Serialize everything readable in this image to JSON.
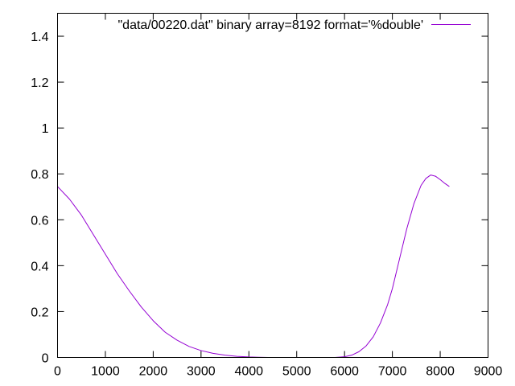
{
  "chart_data": {
    "type": "line",
    "title": "",
    "xlabel": "",
    "ylabel": "",
    "xlim": [
      0,
      9000
    ],
    "ylim": [
      0,
      1.5
    ],
    "x_ticks": [
      "0",
      "1000",
      "2000",
      "3000",
      "4000",
      "5000",
      "6000",
      "7000",
      "8000",
      "9000"
    ],
    "y_ticks": [
      "0",
      "0.2",
      "0.4",
      "0.6",
      "0.8",
      "1",
      "1.2",
      "1.4"
    ],
    "grid": false,
    "legend_position": "top-right",
    "series": [
      {
        "name": "\"data/00220.dat\" binary array=8192 format='%double'",
        "color": "#9400d3",
        "x": [
          0,
          250,
          500,
          750,
          1000,
          1250,
          1500,
          1750,
          2000,
          2250,
          2500,
          2750,
          3000,
          3250,
          3500,
          3750,
          4000,
          4200,
          4400,
          4600,
          4800,
          5000,
          5200,
          5400,
          5600,
          5800,
          6000,
          6150,
          6300,
          6450,
          6600,
          6750,
          6900,
          7000,
          7150,
          7300,
          7450,
          7600,
          7700,
          7800,
          7900,
          8000,
          8100,
          8191
        ],
        "y": [
          0.745,
          0.69,
          0.62,
          0.535,
          0.45,
          0.365,
          0.29,
          0.22,
          0.16,
          0.11,
          0.075,
          0.048,
          0.03,
          0.018,
          0.01,
          0.005,
          0.002,
          0.001,
          0.0,
          0.0,
          0.0,
          0.0,
          0.0,
          0.0,
          0.0,
          0.0,
          0.003,
          0.01,
          0.025,
          0.05,
          0.09,
          0.15,
          0.23,
          0.3,
          0.43,
          0.56,
          0.67,
          0.75,
          0.78,
          0.795,
          0.79,
          0.775,
          0.758,
          0.745
        ]
      }
    ]
  }
}
